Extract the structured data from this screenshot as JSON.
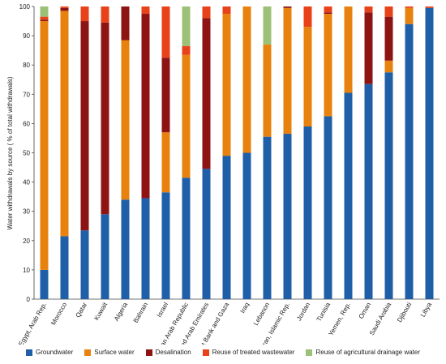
{
  "chart_data": {
    "type": "bar",
    "stacked": true,
    "ylabel": "Water withdrawals by source ( % of total withdrawals)",
    "xlabel": "",
    "ylim": [
      0,
      100
    ],
    "yticks": [
      0,
      10,
      20,
      30,
      40,
      50,
      60,
      70,
      80,
      90,
      100
    ],
    "grid": false,
    "legend_position": "bottom",
    "categories": [
      "Egypt, Arab Rep.",
      "Morocco",
      "Qatar",
      "Kuwait",
      "Algeria",
      "Bahrain",
      "Israel",
      "Syrian Arab Republic",
      "United Arab Emirates",
      "West Bank and Gaza",
      "Iraq",
      "Lebanon",
      "Iran, Islamic Rep.",
      "Jordan",
      "Tunisia",
      "Yemen, Rep.",
      "Oman",
      "Saudi Arabia",
      "Djibouti",
      "Libya"
    ],
    "series": [
      {
        "name": "Groundwater",
        "color": "#1f5fa8",
        "values": [
          10,
          21.5,
          23.5,
          29,
          34,
          34.5,
          36.5,
          41.5,
          44.5,
          49,
          50,
          55.5,
          56.5,
          59,
          62.5,
          70.5,
          73.5,
          77.5,
          94,
          99.5
        ]
      },
      {
        "name": "Surface water",
        "color": "#e8820f",
        "values": [
          85,
          77,
          0,
          0,
          54.5,
          0,
          20.5,
          42,
          0,
          48.5,
          50,
          31.5,
          43,
          34,
          35,
          29.5,
          0,
          4,
          5.5,
          0
        ]
      },
      {
        "name": "Desalination",
        "color": "#8e1414",
        "values": [
          0.5,
          1,
          71.5,
          65.5,
          11.5,
          63,
          25.5,
          0,
          51.5,
          0,
          0,
          0,
          0.5,
          0,
          0.5,
          0,
          24.5,
          15,
          0,
          0
        ]
      },
      {
        "name": "Reuse of treated wastewater",
        "color": "#e8421a",
        "values": [
          1,
          0.5,
          5,
          5.5,
          0,
          2.5,
          17.5,
          3,
          4,
          2.5,
          0,
          0,
          0,
          7,
          2,
          0,
          2,
          3.5,
          0.5,
          0.5
        ]
      },
      {
        "name": "Reuse of agricultural drainage water",
        "color": "#9cc075",
        "values": [
          3.5,
          0,
          0,
          0,
          0,
          0,
          0,
          13.5,
          0,
          0,
          0,
          13,
          0,
          0,
          0,
          0,
          0,
          0,
          0,
          0
        ]
      }
    ]
  }
}
